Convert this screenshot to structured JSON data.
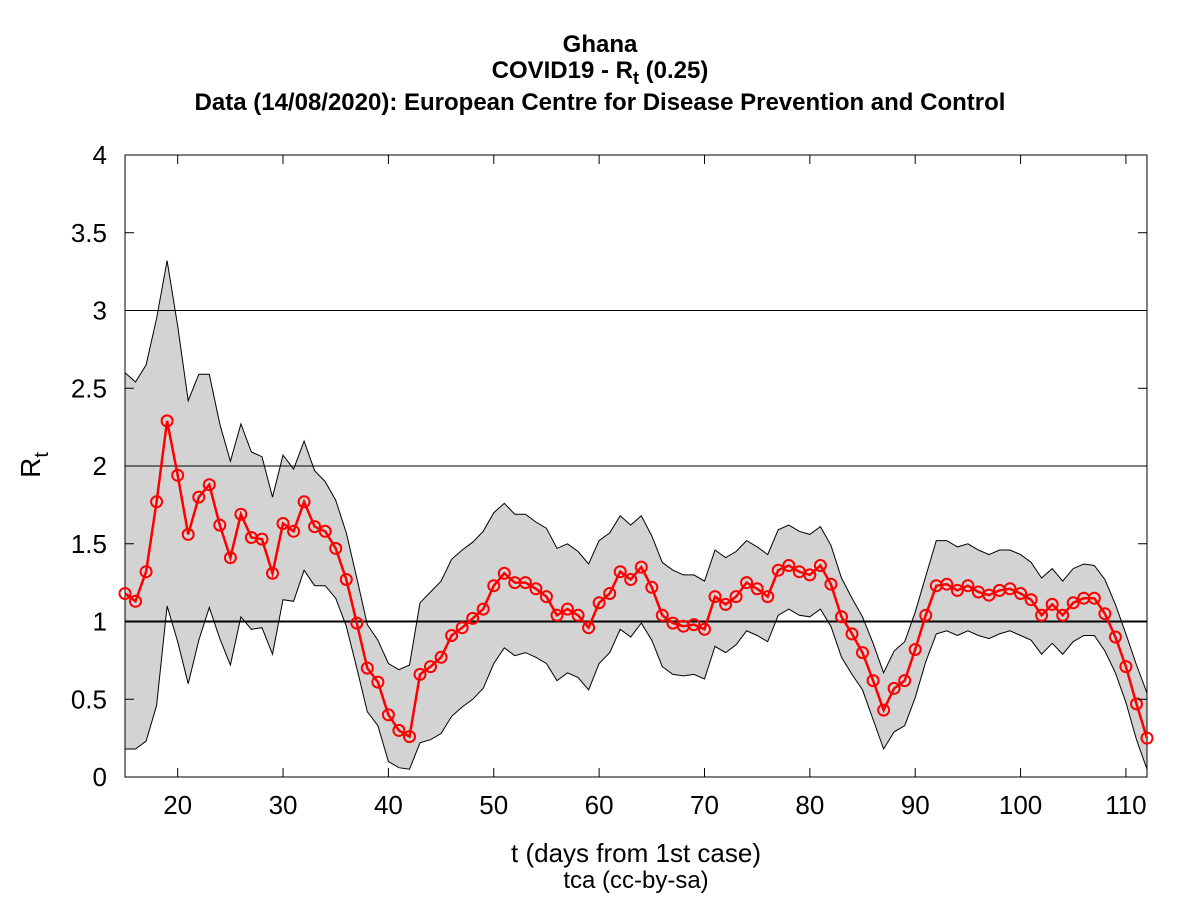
{
  "chart_data": {
    "type": "line",
    "title_lines": {
      "country": "Ghana",
      "metric_prefix": "COVID19 - R",
      "metric_sub": "t",
      "metric_suffix": " (0.25)",
      "source": "Data (14/08/2020): European Centre for Disease Prevention and Control"
    },
    "xlabel": "t (days from 1st case)",
    "ylabel_main": "R",
    "ylabel_sub": "t",
    "credit": "tca (cc-by-sa)",
    "xlim": [
      15,
      112
    ],
    "ylim": [
      0,
      4
    ],
    "x_ticks": [
      20,
      30,
      40,
      50,
      60,
      70,
      80,
      90,
      100,
      110
    ],
    "y_ticks": [
      0,
      0.5,
      1,
      1.5,
      2,
      2.5,
      3,
      3.5,
      4
    ],
    "y_tick_labels": [
      "0",
      "0.5",
      "1",
      "1.5",
      "2",
      "2.5",
      "3",
      "3.5",
      "4"
    ],
    "reference_lines": [
      1,
      2,
      3
    ],
    "grid": false,
    "colors": {
      "series": "#ff0000",
      "band_fill": "#d3d3d3",
      "band_edge": "#000000",
      "axis": "#000000"
    },
    "x": [
      15,
      16,
      17,
      18,
      19,
      20,
      21,
      22,
      23,
      24,
      25,
      26,
      27,
      28,
      29,
      30,
      31,
      32,
      33,
      34,
      35,
      36,
      37,
      38,
      39,
      40,
      41,
      42,
      43,
      44,
      45,
      46,
      47,
      48,
      49,
      50,
      51,
      52,
      53,
      54,
      55,
      56,
      57,
      58,
      59,
      60,
      61,
      62,
      63,
      64,
      65,
      66,
      67,
      68,
      69,
      70,
      71,
      72,
      73,
      74,
      75,
      76,
      77,
      78,
      79,
      80,
      81,
      82,
      83,
      84,
      85,
      86,
      87,
      88,
      89,
      90,
      91,
      92,
      93,
      94,
      95,
      96,
      97,
      98,
      99,
      100,
      101,
      102,
      103,
      104,
      105,
      106,
      107,
      108,
      109,
      110,
      111,
      112
    ],
    "series": [
      {
        "role": "estimate",
        "values": [
          1.18,
          1.13,
          1.32,
          1.77,
          2.29,
          1.94,
          1.56,
          1.8,
          1.88,
          1.62,
          1.41,
          1.69,
          1.54,
          1.53,
          1.31,
          1.63,
          1.58,
          1.77,
          1.61,
          1.58,
          1.47,
          1.27,
          0.99,
          0.7,
          0.61,
          0.4,
          0.3,
          0.26,
          0.66,
          0.71,
          0.77,
          0.91,
          0.96,
          1.02,
          1.08,
          1.23,
          1.31,
          1.25,
          1.25,
          1.21,
          1.16,
          1.04,
          1.08,
          1.04,
          0.96,
          1.12,
          1.18,
          1.32,
          1.27,
          1.35,
          1.22,
          1.04,
          0.99,
          0.97,
          0.98,
          0.95,
          1.16,
          1.11,
          1.16,
          1.25,
          1.21,
          1.16,
          1.33,
          1.36,
          1.32,
          1.3,
          1.36,
          1.24,
          1.03,
          0.92,
          0.8,
          0.62,
          0.43,
          0.57,
          0.62,
          0.82,
          1.04,
          1.23,
          1.24,
          1.2,
          1.23,
          1.19,
          1.17,
          1.2,
          1.21,
          1.18,
          1.14,
          1.04,
          1.11,
          1.04,
          1.12,
          1.15,
          1.15,
          1.05,
          0.9,
          0.71,
          0.47,
          0.25
        ]
      },
      {
        "role": "upper_bound",
        "values": [
          2.6,
          2.54,
          2.65,
          2.95,
          3.32,
          2.9,
          2.42,
          2.59,
          2.59,
          2.27,
          2.03,
          2.27,
          2.09,
          2.06,
          1.8,
          2.07,
          1.98,
          2.16,
          1.97,
          1.9,
          1.78,
          1.57,
          1.28,
          0.98,
          0.88,
          0.73,
          0.69,
          0.72,
          1.12,
          1.19,
          1.26,
          1.4,
          1.46,
          1.51,
          1.58,
          1.7,
          1.76,
          1.69,
          1.69,
          1.64,
          1.6,
          1.47,
          1.5,
          1.45,
          1.37,
          1.52,
          1.57,
          1.68,
          1.62,
          1.68,
          1.55,
          1.38,
          1.33,
          1.3,
          1.3,
          1.26,
          1.46,
          1.41,
          1.45,
          1.52,
          1.48,
          1.43,
          1.59,
          1.62,
          1.58,
          1.56,
          1.61,
          1.49,
          1.28,
          1.15,
          1.03,
          0.86,
          0.67,
          0.81,
          0.87,
          1.06,
          1.29,
          1.52,
          1.52,
          1.48,
          1.5,
          1.46,
          1.43,
          1.46,
          1.46,
          1.43,
          1.38,
          1.28,
          1.34,
          1.26,
          1.34,
          1.37,
          1.36,
          1.27,
          1.11,
          0.92,
          0.72,
          0.54
        ]
      },
      {
        "role": "lower_bound",
        "values": [
          0.18,
          0.18,
          0.23,
          0.46,
          1.1,
          0.87,
          0.6,
          0.88,
          1.09,
          0.89,
          0.72,
          1.03,
          0.95,
          0.96,
          0.79,
          1.14,
          1.13,
          1.33,
          1.23,
          1.23,
          1.15,
          0.97,
          0.7,
          0.42,
          0.33,
          0.1,
          0.06,
          0.05,
          0.22,
          0.24,
          0.28,
          0.39,
          0.45,
          0.5,
          0.57,
          0.73,
          0.83,
          0.78,
          0.8,
          0.77,
          0.73,
          0.62,
          0.67,
          0.64,
          0.56,
          0.73,
          0.8,
          0.95,
          0.9,
          0.99,
          0.88,
          0.71,
          0.66,
          0.65,
          0.66,
          0.63,
          0.84,
          0.8,
          0.85,
          0.94,
          0.91,
          0.87,
          1.04,
          1.08,
          1.04,
          1.03,
          1.08,
          0.97,
          0.77,
          0.66,
          0.56,
          0.37,
          0.18,
          0.29,
          0.33,
          0.51,
          0.74,
          0.92,
          0.94,
          0.91,
          0.94,
          0.91,
          0.89,
          0.92,
          0.94,
          0.91,
          0.88,
          0.79,
          0.86,
          0.79,
          0.87,
          0.91,
          0.91,
          0.81,
          0.67,
          0.48,
          0.24,
          0.05
        ]
      }
    ]
  }
}
